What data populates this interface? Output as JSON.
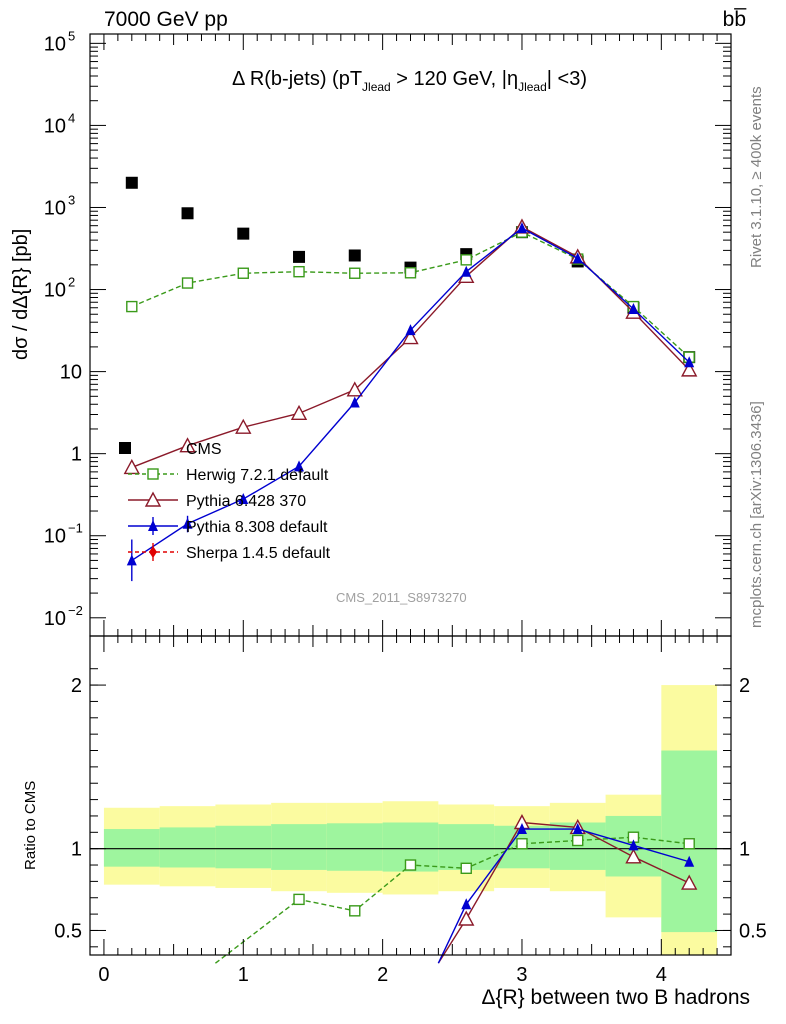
{
  "header": {
    "left": "7000 GeV pp",
    "right": "bb̅"
  },
  "title": {
    "main": "Δ R(b-jets) (pT",
    "sub1": "Jlead",
    "mid": " >  120 GeV, |η",
    "sub2": "Jlead",
    "end": "| <3)"
  },
  "side": {
    "rivet": "Rivet 3.1.10, ≥ 400k events",
    "mcplots": "mcplots.cern.ch [arXiv:1306.3436]"
  },
  "analysis_id": "CMS_2011_S8973270",
  "colors": {
    "cms": "#000000",
    "herwig": "#3a9a1a",
    "pythia6": "#8b1a2a",
    "pythia8": "#0000d0",
    "sherpa": "#e00000",
    "band_inner": "#9ef59e",
    "band_outer": "#fbfba0"
  },
  "chart_data": [
    {
      "type": "line",
      "title": "Δ R(b-jets) (pT_Jlead > 120 GeV, |η_Jlead| <3)",
      "ylabel": "dσ / dΔ{R} [pb]",
      "yscale": "log",
      "ylim": [
        0.006,
        130000
      ],
      "xlim": [
        -0.1,
        4.5
      ],
      "y_ticks": [
        {
          "v": 0.01,
          "label": "10",
          "exp": "−2"
        },
        {
          "v": 0.1,
          "label": "10",
          "exp": "−1"
        },
        {
          "v": 1,
          "label": "1",
          "exp": ""
        },
        {
          "v": 10,
          "label": "10",
          "exp": ""
        },
        {
          "v": 100,
          "label": "10",
          "exp": "2"
        },
        {
          "v": 1000,
          "label": "10",
          "exp": "3"
        },
        {
          "v": 10000,
          "label": "10",
          "exp": "4"
        },
        {
          "v": 100000,
          "label": "10",
          "exp": "5"
        }
      ],
      "series": [
        {
          "name": "CMS",
          "key": "cms",
          "marker": "square-filled",
          "x": [
            0.2,
            0.6,
            1.0,
            1.4,
            1.8,
            2.2,
            2.6,
            3.0,
            3.4,
            3.8,
            4.2
          ],
          "y": [
            2000,
            850,
            480,
            250,
            260,
            185,
            270,
            500,
            220,
            60,
            15
          ]
        },
        {
          "name": "Herwig 7.2.1 default",
          "key": "herwig",
          "marker": "square-open",
          "dash": true,
          "x": [
            0.2,
            0.6,
            1.0,
            1.4,
            1.8,
            2.2,
            2.6,
            3.0,
            3.4,
            3.8,
            4.2
          ],
          "y": [
            62,
            120,
            158,
            165,
            158,
            160,
            230,
            500,
            235,
            62,
            15
          ]
        },
        {
          "name": "Pythia 6.428 370",
          "key": "pythia6",
          "marker": "triangle-open",
          "x": [
            0.2,
            0.6,
            1.0,
            1.4,
            1.8,
            2.2,
            2.6,
            3.0,
            3.4,
            3.8,
            4.2
          ],
          "y": [
            0.68,
            1.25,
            2.1,
            3.1,
            6.0,
            26,
            145,
            580,
            250,
            53,
            10.5
          ]
        },
        {
          "name": "Pythia 8.308 default",
          "key": "pythia8",
          "marker": "triangle-filled",
          "x": [
            0.2,
            0.6,
            1.0,
            1.4,
            1.8,
            2.2,
            2.6,
            3.0,
            3.4,
            3.8,
            4.2
          ],
          "y": [
            0.05,
            0.14,
            0.28,
            0.7,
            4.2,
            32,
            165,
            560,
            240,
            58,
            13
          ]
        },
        {
          "name": "Sherpa 1.4.5 default",
          "key": "sherpa",
          "marker": "diamond-filled",
          "dash": true,
          "x": [],
          "y": []
        }
      ]
    },
    {
      "type": "line",
      "ylabel": "Ratio to CMS",
      "xlabel": "Δ{R} between two B hadrons",
      "ylim": [
        0.35,
        2.3
      ],
      "xlim": [
        -0.1,
        4.5
      ],
      "y_ticks": [
        "0.5",
        "1",
        "2"
      ],
      "y_tick_values": [
        0.5,
        1,
        2
      ],
      "x_ticks": [
        "0",
        "1",
        "2",
        "3",
        "4"
      ],
      "x_tick_values": [
        0,
        1,
        2,
        3,
        4
      ],
      "bins": [
        {
          "lo": 0.0,
          "hi": 0.4,
          "inner": [
            0.89,
            1.12
          ],
          "outer": [
            0.78,
            1.25
          ]
        },
        {
          "lo": 0.4,
          "hi": 0.8,
          "inner": [
            0.885,
            1.13
          ],
          "outer": [
            0.77,
            1.26
          ]
        },
        {
          "lo": 0.8,
          "hi": 1.2,
          "inner": [
            0.88,
            1.14
          ],
          "outer": [
            0.76,
            1.27
          ]
        },
        {
          "lo": 1.2,
          "hi": 1.6,
          "inner": [
            0.87,
            1.15
          ],
          "outer": [
            0.74,
            1.28
          ]
        },
        {
          "lo": 1.6,
          "hi": 2.0,
          "inner": [
            0.865,
            1.155
          ],
          "outer": [
            0.73,
            1.28
          ]
        },
        {
          "lo": 2.0,
          "hi": 2.4,
          "inner": [
            0.86,
            1.16
          ],
          "outer": [
            0.72,
            1.29
          ]
        },
        {
          "lo": 2.4,
          "hi": 2.8,
          "inner": [
            0.87,
            1.15
          ],
          "outer": [
            0.74,
            1.27
          ]
        },
        {
          "lo": 2.8,
          "hi": 3.2,
          "inner": [
            0.88,
            1.14
          ],
          "outer": [
            0.76,
            1.26
          ]
        },
        {
          "lo": 3.2,
          "hi": 3.6,
          "inner": [
            0.87,
            1.16
          ],
          "outer": [
            0.74,
            1.28
          ]
        },
        {
          "lo": 3.6,
          "hi": 4.0,
          "inner": [
            0.83,
            1.2
          ],
          "outer": [
            0.58,
            1.33
          ]
        },
        {
          "lo": 4.0,
          "hi": 4.4,
          "inner": [
            0.49,
            1.6
          ],
          "outer": [
            0.3,
            2.0
          ]
        }
      ],
      "series": [
        {
          "name": "Herwig 7.2.1 default",
          "key": "herwig",
          "marker": "square-open",
          "dash": true,
          "x": [
            0.8,
            1.4,
            1.8,
            2.2,
            2.6,
            3.0,
            3.4,
            3.8,
            4.2
          ],
          "y": [
            0.3,
            0.69,
            0.62,
            0.9,
            0.88,
            1.03,
            1.05,
            1.07,
            1.03
          ]
        },
        {
          "name": "Pythia 6.428 370",
          "key": "pythia6",
          "marker": "triangle-open",
          "x": [
            2.4,
            2.6,
            3.0,
            3.4,
            3.8,
            4.2
          ],
          "y": [
            0.3,
            0.57,
            1.16,
            1.13,
            0.95,
            0.79
          ]
        },
        {
          "name": "Pythia 8.308 default",
          "key": "pythia8",
          "marker": "triangle-filled",
          "x": [
            2.4,
            2.6,
            3.0,
            3.4,
            3.8,
            4.2
          ],
          "y": [
            0.3,
            0.66,
            1.12,
            1.12,
            1.02,
            0.92
          ]
        }
      ]
    }
  ]
}
